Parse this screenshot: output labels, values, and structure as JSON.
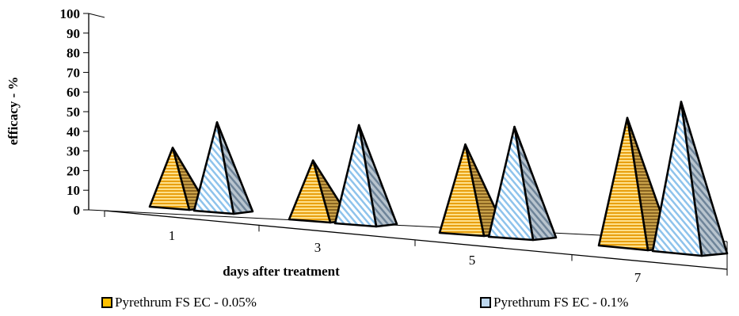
{
  "chart_data": {
    "type": "bar",
    "subtype": "3d-pyramid",
    "title": "",
    "xlabel": "days after treatment",
    "ylabel": "efficacy - %",
    "ylim": [
      0,
      100
    ],
    "yticks": [
      "0",
      "10",
      "20",
      "30",
      "40",
      "50",
      "60",
      "70",
      "80",
      "90",
      "100"
    ],
    "categories": [
      "1",
      "3",
      "5",
      "7"
    ],
    "series": [
      {
        "name": "Pyrethrum FS EC - 0.05%",
        "values": [
          30,
          30,
          45,
          65
        ],
        "color": "#FFC000",
        "pattern": "horizontal-stripes"
      },
      {
        "name": "Pyrethrum FS EC - 0.1%",
        "values": [
          45,
          50,
          56,
          76
        ],
        "color": "#9DC3E6",
        "pattern": "diagonal-stripes"
      }
    ],
    "grid": false,
    "legend_position": "bottom"
  }
}
